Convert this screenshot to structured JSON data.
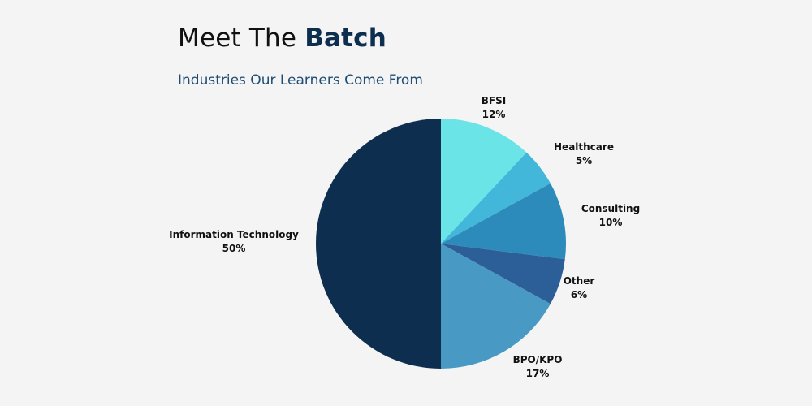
{
  "header": {
    "title_regular": "Meet The",
    "title_bold": "Batch",
    "subtitle": "Industries Our Learners Come From"
  },
  "colors": {
    "title_bold": "#0d2e4e",
    "subtitle": "#1f4d74",
    "background": "#f4f4f4"
  },
  "chart_data": {
    "type": "pie",
    "title": "",
    "slices": [
      {
        "label": "BFSI",
        "value": 12,
        "display": "12%",
        "color": "#6be4e8"
      },
      {
        "label": "Healthcare",
        "value": 5,
        "display": "5%",
        "color": "#42b7d9"
      },
      {
        "label": "Consulting",
        "value": 10,
        "display": "10%",
        "color": "#2d8bbb"
      },
      {
        "label": "Other",
        "value": 6,
        "display": "6%",
        "color": "#2c5e97"
      },
      {
        "label": "BPO/KPO",
        "value": 17,
        "display": "17%",
        "color": "#4899c4"
      },
      {
        "label": "Information Technology",
        "value": 50,
        "display": "50%",
        "color": "#0d2e4e"
      }
    ],
    "start": "12 o'clock",
    "direction": "clockwise",
    "legend": "none",
    "labels": "outside"
  }
}
